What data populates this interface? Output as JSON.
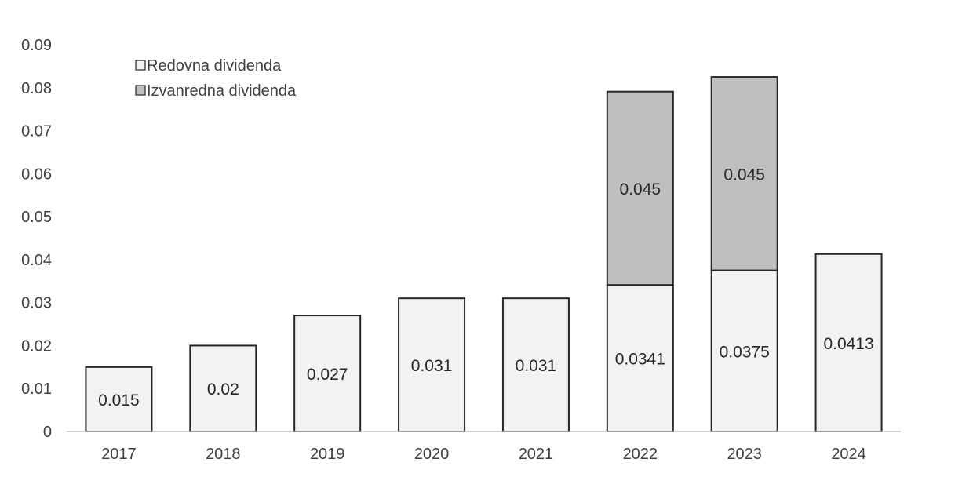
{
  "chart_data": {
    "type": "bar",
    "stacked": true,
    "categories": [
      "2017",
      "2018",
      "2019",
      "2020",
      "2021",
      "2022",
      "2023",
      "2024"
    ],
    "series": [
      {
        "name": "Redovna dividenda",
        "values": [
          0.015,
          0.02,
          0.027,
          0.031,
          0.031,
          0.0341,
          0.0375,
          0.0413
        ],
        "labels": [
          "0.015",
          "0.02",
          "0.027",
          "0.031",
          "0.031",
          "0.0341",
          "0.0375",
          "0.0413"
        ],
        "color": "#f2f2f2"
      },
      {
        "name": "Izvanredna dividenda",
        "values": [
          null,
          null,
          null,
          null,
          null,
          0.045,
          0.045,
          null
        ],
        "labels": [
          "",
          "",
          "",
          "",
          "",
          "0.045",
          "0.045",
          ""
        ],
        "color": "#bfbfbf"
      }
    ],
    "title": "",
    "xlabel": "",
    "ylabel": "",
    "ylim": [
      0,
      0.09
    ],
    "yticks": [
      "0",
      "0.01",
      "0.02",
      "0.03",
      "0.04",
      "0.05",
      "0.06",
      "0.07",
      "0.08",
      "0.09"
    ],
    "grid": false,
    "legend_position": "top-left",
    "colors": {
      "bar_border": "#262626",
      "axis": "#bfbfbf",
      "text": "#404040"
    }
  }
}
